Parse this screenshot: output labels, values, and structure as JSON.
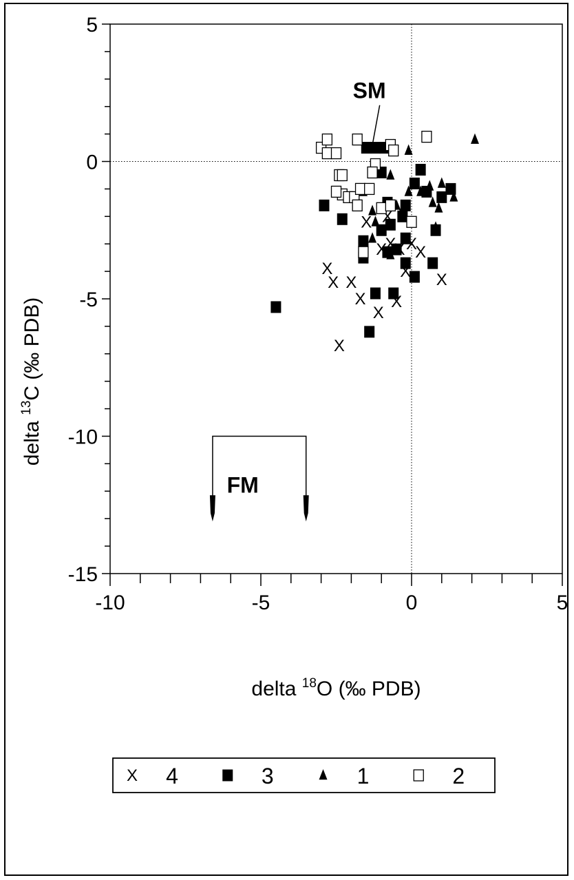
{
  "chart_data": {
    "type": "scatter",
    "title": "",
    "xlabel": {
      "prefix": "delta ",
      "sup": "18",
      "main": "O (‰ PDB)"
    },
    "ylabel": {
      "prefix": "delta ",
      "sup": "13",
      "main": "C (‰ PDB)"
    },
    "xlim": [
      -10,
      5
    ],
    "ylim": [
      -15,
      5
    ],
    "x_ticks": [
      -10,
      -5,
      0,
      5
    ],
    "y_ticks": [
      -15,
      -10,
      -5,
      0,
      5
    ],
    "x_minor_step": 1,
    "y_minor_step": 1,
    "reference_lines": {
      "x": 0,
      "y": 0,
      "style": "dotted"
    },
    "grid": false,
    "legend_position": "bottom",
    "series": [
      {
        "name": "4",
        "marker": "x",
        "points": [
          [
            -2.8,
            -3.9
          ],
          [
            -2.6,
            -4.4
          ],
          [
            -2.0,
            -4.4
          ],
          [
            -1.7,
            -5.0
          ],
          [
            -1.5,
            -2.2
          ],
          [
            -1.1,
            -5.5
          ],
          [
            -1.0,
            -3.2
          ],
          [
            -0.8,
            -2.0
          ],
          [
            -0.7,
            -3.0
          ],
          [
            -0.5,
            -5.1
          ],
          [
            -0.4,
            -3.2
          ],
          [
            -0.2,
            -4.0
          ],
          [
            0.0,
            -3.0
          ],
          [
            0.3,
            -3.3
          ],
          [
            1.0,
            -4.3
          ],
          [
            -2.4,
            -6.7
          ],
          [
            0.8,
            -2.5
          ],
          [
            -0.3,
            -1.9
          ]
        ]
      },
      {
        "name": "3",
        "marker": "filled-square",
        "points": [
          [
            -4.5,
            -5.3
          ],
          [
            -2.9,
            -1.6
          ],
          [
            -2.3,
            -2.1
          ],
          [
            -1.6,
            -2.9
          ],
          [
            -1.6,
            -3.5
          ],
          [
            -1.4,
            -6.2
          ],
          [
            -1.2,
            -4.8
          ],
          [
            -1.0,
            -0.4
          ],
          [
            -1.0,
            -2.5
          ],
          [
            -0.8,
            -3.3
          ],
          [
            -0.8,
            -1.5
          ],
          [
            -0.7,
            -2.3
          ],
          [
            -0.6,
            -4.8
          ],
          [
            -0.5,
            -3.2
          ],
          [
            -0.3,
            -2.0
          ],
          [
            -0.2,
            -1.6
          ],
          [
            -0.2,
            -2.8
          ],
          [
            -0.2,
            -3.7
          ],
          [
            0.1,
            -0.8
          ],
          [
            0.1,
            -4.2
          ],
          [
            0.3,
            -0.3
          ],
          [
            0.5,
            -1.1
          ],
          [
            0.7,
            -3.7
          ],
          [
            0.8,
            -2.5
          ],
          [
            1.0,
            -1.3
          ],
          [
            1.3,
            -1.0
          ],
          [
            -1.5,
            0.5
          ],
          [
            -1.2,
            0.5
          ],
          [
            -0.9,
            0.5
          ]
        ]
      },
      {
        "name": "1",
        "marker": "filled-triangle",
        "points": [
          [
            2.1,
            0.8
          ],
          [
            -0.1,
            0.4
          ],
          [
            -0.6,
            0.6
          ],
          [
            -0.7,
            -0.5
          ],
          [
            -1.6,
            -1.1
          ],
          [
            -1.3,
            -1.8
          ],
          [
            -1.2,
            -2.2
          ],
          [
            -1.3,
            -2.8
          ],
          [
            -0.5,
            -1.6
          ],
          [
            -0.1,
            -1.1
          ],
          [
            0.3,
            -1.1
          ],
          [
            0.6,
            -0.9
          ],
          [
            0.7,
            -1.5
          ],
          [
            0.9,
            -1.7
          ],
          [
            1.0,
            -0.8
          ],
          [
            1.4,
            -1.3
          ],
          [
            0.8,
            -2.4
          ],
          [
            -0.7,
            -3.4
          ]
        ]
      },
      {
        "name": "2",
        "marker": "open-square",
        "points": [
          [
            -3.0,
            0.5
          ],
          [
            -2.8,
            0.3
          ],
          [
            -2.8,
            0.8
          ],
          [
            -2.5,
            0.3
          ],
          [
            -2.4,
            -0.5
          ],
          [
            -2.3,
            -1.2
          ],
          [
            -2.3,
            -0.5
          ],
          [
            -2.1,
            -1.3
          ],
          [
            -1.9,
            -1.3
          ],
          [
            -1.8,
            -1.6
          ],
          [
            -1.8,
            0.8
          ],
          [
            -1.7,
            -1.0
          ],
          [
            -1.6,
            -3.3
          ],
          [
            -1.4,
            -1.0
          ],
          [
            -1.2,
            -0.1
          ],
          [
            -1.3,
            -0.4
          ],
          [
            -1.0,
            -1.7
          ],
          [
            -0.7,
            -1.6
          ],
          [
            -0.7,
            0.6
          ],
          [
            -0.6,
            0.4
          ],
          [
            0.0,
            -2.2
          ],
          [
            0.5,
            0.9
          ],
          [
            -2.5,
            -1.1
          ]
        ]
      }
    ],
    "annotations": [
      {
        "text": "SM",
        "x": -1.4,
        "y": 2.3,
        "leader_to": [
          -1.3,
          0.6
        ]
      },
      {
        "text": "FM",
        "x": -5.6,
        "y": -11.8,
        "bracket": {
          "x1": -6.6,
          "x2": -3.5,
          "top": -10.0,
          "bottom": -13.0
        }
      }
    ],
    "legend": [
      {
        "marker": "x",
        "label": "4"
      },
      {
        "marker": "filled-square",
        "label": "3"
      },
      {
        "marker": "filled-triangle",
        "label": "1"
      },
      {
        "marker": "open-square",
        "label": "2"
      }
    ]
  }
}
